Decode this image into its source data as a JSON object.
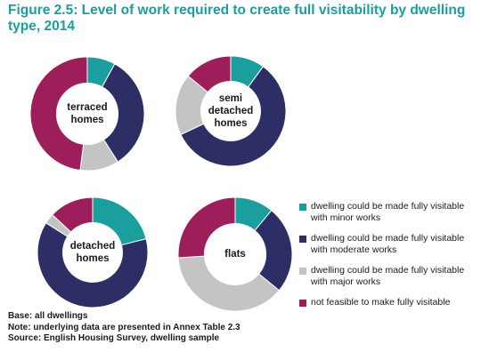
{
  "figure": {
    "title": "Figure 2.5: Level of work required to create full visitability by dwelling type, 2014"
  },
  "chart_data": {
    "type": "pie",
    "donut": true,
    "categories": [
      "dwelling could be made fully visitable with minor works",
      "dwelling could be made fully visitable with moderate works",
      "dwelling could be made fully visitable with major works",
      "not feasible to make fully visitable"
    ],
    "colors": [
      "#1a9e9e",
      "#2e2e66",
      "#c4c4c4",
      "#9e1e5b"
    ],
    "legend_position": "right",
    "charts": [
      {
        "label": "terraced\nhomes",
        "values": [
          8,
          33,
          11,
          48
        ]
      },
      {
        "label": "semi\ndetached\nhomes",
        "values": [
          10,
          58,
          18,
          14
        ]
      },
      {
        "label": "detached\nhomes",
        "values": [
          21,
          63,
          3,
          13
        ]
      },
      {
        "label": "flats",
        "values": [
          11,
          25,
          38,
          26
        ]
      }
    ]
  },
  "notes": [
    "Base: all dwellings",
    "Note: underlying data are presented in Annex Table 2.3",
    "Source: English Housing Survey, dwelling sample"
  ]
}
